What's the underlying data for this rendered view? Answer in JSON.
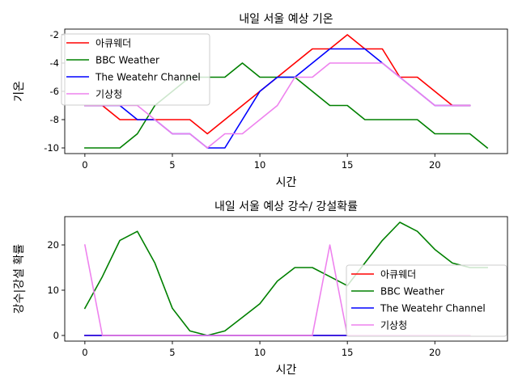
{
  "chart_data": [
    {
      "type": "line",
      "title": "내일 서울 예상 기온",
      "xlabel": "시간",
      "ylabel": "기온",
      "xlim": [
        -1.15,
        24.15
      ],
      "ylim": [
        -10.4,
        -1.6
      ],
      "xticks": [
        0,
        5,
        10,
        15,
        20
      ],
      "yticks": [
        -10,
        -8,
        -6,
        -4,
        -2
      ],
      "grid": false,
      "legend_position": "upper-left",
      "series": [
        {
          "name": "아큐웨더",
          "color": "#ff0000",
          "x": [
            0,
            1,
            2,
            3,
            4,
            5,
            6,
            7,
            8,
            9,
            10,
            11,
            12,
            13,
            14,
            15,
            16,
            17,
            18,
            19,
            20,
            21,
            22
          ],
          "y": [
            -7,
            -7,
            -8,
            -8,
            -8,
            -8,
            -8,
            -9,
            -8,
            -7,
            -6,
            -5,
            -4,
            -3,
            -3,
            -2,
            -3,
            -3,
            -5,
            -5,
            -6,
            -7,
            -7
          ]
        },
        {
          "name": "BBC Weather",
          "color": "#008000",
          "x": [
            0,
            1,
            2,
            3,
            4,
            5,
            6,
            7,
            8,
            9,
            10,
            11,
            12,
            13,
            14,
            15,
            16,
            17,
            18,
            19,
            20,
            21,
            22,
            23
          ],
          "y": [
            -10,
            -10,
            -10,
            -9,
            -7,
            -6,
            -5,
            -5,
            -5,
            -4,
            -5,
            -5,
            -5,
            -6,
            -7,
            -7,
            -8,
            -8,
            -8,
            -8,
            -9,
            -9,
            -9,
            -10
          ]
        },
        {
          "name": "The Weatehr Channel",
          "color": "#0000ff",
          "x": [
            0,
            1,
            2,
            3,
            4,
            5,
            6,
            7,
            8,
            9,
            10,
            11,
            12,
            13,
            14,
            15,
            16,
            17,
            18,
            19,
            20,
            21,
            22
          ],
          "y": [
            -7,
            -7,
            -7,
            -8,
            -8,
            -9,
            -9,
            -10,
            -10,
            -8,
            -6,
            -5,
            -5,
            -4,
            -3,
            -3,
            -3,
            -4,
            -5,
            -6,
            -7,
            -7,
            -7
          ]
        },
        {
          "name": "기상청",
          "color": "#ee82ee",
          "x": [
            0,
            1,
            2,
            3,
            4,
            5,
            6,
            7,
            8,
            9,
            10,
            11,
            12,
            13,
            14,
            15,
            16,
            17,
            18,
            19,
            20,
            21,
            22
          ],
          "y": [
            -7,
            -7,
            -7,
            -7,
            -8,
            -9,
            -9,
            -10,
            -9,
            -9,
            -8,
            -7,
            -5,
            -5,
            -4,
            -4,
            -4,
            -4,
            -5,
            -6,
            -7,
            -7,
            -7
          ]
        }
      ]
    },
    {
      "type": "line",
      "title": "내일 서울 예상 강수/ 강설확률",
      "xlabel": "시간",
      "ylabel": "강수|강설 확률",
      "xlim": [
        -1.15,
        24.15
      ],
      "ylim": [
        -1.25,
        26.25
      ],
      "xticks": [
        0,
        5,
        10,
        15,
        20
      ],
      "yticks": [
        0,
        10,
        20
      ],
      "grid": false,
      "legend_position": "lower-right",
      "series": [
        {
          "name": "아큐웨더",
          "color": "#ff0000",
          "x": [
            0,
            1,
            2,
            3,
            4,
            5,
            6,
            7,
            8,
            9,
            10,
            11,
            12,
            13,
            14,
            15,
            16,
            17,
            18,
            19,
            20,
            21,
            22
          ],
          "y": [
            0,
            0,
            0,
            0,
            0,
            0,
            0,
            0,
            0,
            0,
            0,
            0,
            0,
            0,
            0,
            0,
            0,
            0,
            0,
            0,
            0,
            0,
            0
          ]
        },
        {
          "name": "BBC Weather",
          "color": "#008000",
          "x": [
            0,
            1,
            2,
            3,
            4,
            5,
            6,
            7,
            8,
            9,
            10,
            11,
            12,
            13,
            14,
            15,
            16,
            17,
            18,
            19,
            20,
            21,
            22,
            23
          ],
          "y": [
            6,
            13,
            21,
            23,
            16,
            6,
            1,
            0,
            1,
            4,
            7,
            12,
            15,
            15,
            13,
            11,
            16,
            21,
            25,
            23,
            19,
            16,
            15,
            15
          ]
        },
        {
          "name": "The Weatehr Channel",
          "color": "#0000ff",
          "x": [
            0,
            1,
            2,
            3,
            4,
            5,
            6,
            7,
            8,
            9,
            10,
            11,
            12,
            13,
            14,
            15
          ],
          "y": [
            0,
            0,
            0,
            0,
            0,
            0,
            0,
            0,
            0,
            0,
            0,
            0,
            0,
            0,
            0,
            0
          ]
        },
        {
          "name": "기상청",
          "color": "#ee82ee",
          "x": [
            0,
            1,
            2,
            3,
            4,
            5,
            6,
            7,
            8,
            9,
            10,
            11,
            12,
            13,
            14,
            15,
            16,
            17,
            18,
            19,
            20,
            21,
            22
          ],
          "y": [
            20,
            0,
            0,
            0,
            0,
            0,
            0,
            0,
            0,
            0,
            0,
            0,
            0,
            0,
            20,
            0,
            0,
            0,
            0,
            0,
            0,
            0,
            0
          ]
        }
      ]
    }
  ]
}
